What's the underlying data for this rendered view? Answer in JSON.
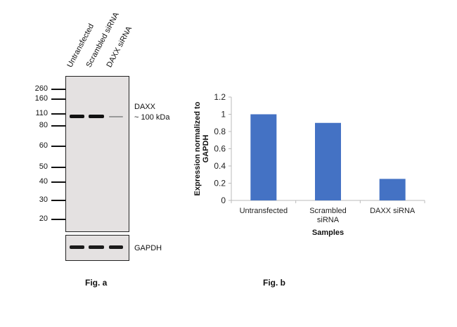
{
  "blot": {
    "lanes": [
      "Untransfected",
      "Scrambled siRNA",
      "DAXX siRNA"
    ],
    "markers": [
      "260",
      "160",
      "110",
      "80",
      "60",
      "50",
      "40",
      "30",
      "20"
    ],
    "target_label": "DAXX",
    "target_size": "~ 100 kDa",
    "loading_control": "GAPDH",
    "caption": "Fig. a"
  },
  "chart_caption": "Fig. b",
  "chart_data": {
    "type": "bar",
    "categories": [
      "Untransfected",
      "Scrambled siRNA",
      "DAXX siRNA"
    ],
    "category_lines": [
      [
        "Untransfected"
      ],
      [
        "Scrambled",
        "siRNA"
      ],
      [
        "DAXX siRNA"
      ]
    ],
    "values": [
      1.0,
      0.9,
      0.25
    ],
    "xlabel": "Samples",
    "ylabel": "Expression  normalized to GAPDH",
    "ylabel_lines": [
      "Expression  normalized to",
      "GAPDH"
    ],
    "ylim": [
      0,
      1.2
    ],
    "yticks": [
      "0",
      "0.2",
      "0.4",
      "0.6",
      "0.8",
      "1",
      "1.2"
    ],
    "grid": false,
    "bar_color": "#4472c4"
  }
}
